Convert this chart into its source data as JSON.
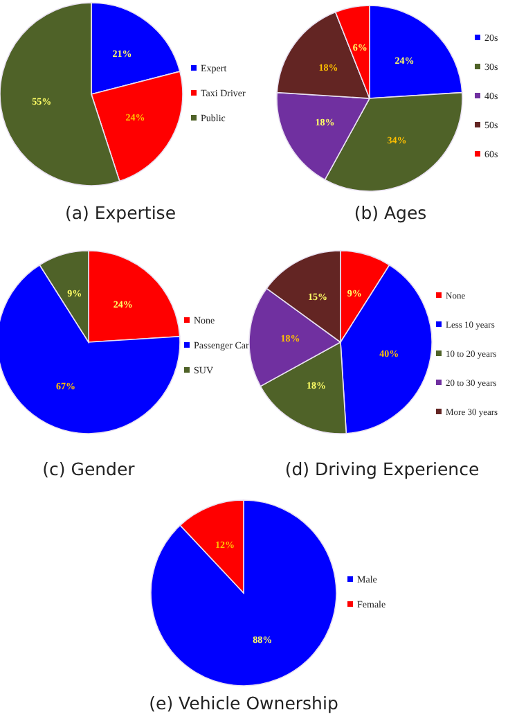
{
  "chart_data": [
    {
      "type": "pie",
      "title": "(a) Expertise",
      "categories": [
        "Expert",
        "Taxi Driver",
        "Public"
      ],
      "values": [
        21,
        24,
        55
      ],
      "colors": [
        "#0000ff",
        "#ff0000",
        "#4f6228"
      ],
      "value_labels": [
        "21%",
        "24%",
        "55%"
      ],
      "legend": "right"
    },
    {
      "type": "pie",
      "title": "(b) Ages",
      "categories": [
        "20s",
        "30s",
        "40s",
        "50s",
        "60s"
      ],
      "values": [
        24,
        34,
        18,
        18,
        6
      ],
      "colors": [
        "#0000ff",
        "#4f6228",
        "#7030a0",
        "#632523",
        "#ff0000"
      ],
      "value_labels": [
        "24%",
        "34%",
        "18%",
        "18%",
        "6%"
      ],
      "legend": "right"
    },
    {
      "type": "pie",
      "title": "(c) Gender",
      "categories": [
        "None",
        "Passenger Car",
        "SUV"
      ],
      "values": [
        24,
        67,
        9
      ],
      "colors": [
        "#ff0000",
        "#0000ff",
        "#4f6228"
      ],
      "value_labels": [
        "24%",
        "67%",
        "9%"
      ],
      "legend": "right"
    },
    {
      "type": "pie",
      "title": "(d) Driving Experience",
      "categories": [
        "None",
        "Less 10 years",
        "10 to 20 years",
        "20 to 30 years",
        "More 30 years"
      ],
      "values": [
        9,
        40,
        18,
        18,
        15
      ],
      "colors": [
        "#ff0000",
        "#0000ff",
        "#4f6228",
        "#7030a0",
        "#632523"
      ],
      "value_labels": [
        "9%",
        "40%",
        "18%",
        "18%",
        "15%"
      ],
      "legend": "right"
    },
    {
      "type": "pie",
      "title": "(e) Vehicle Ownership",
      "categories": [
        "Male",
        "Female"
      ],
      "values": [
        88,
        12
      ],
      "colors": [
        "#0000ff",
        "#ff0000"
      ],
      "value_labels": [
        "88%",
        "12%"
      ],
      "legend": "right"
    }
  ]
}
